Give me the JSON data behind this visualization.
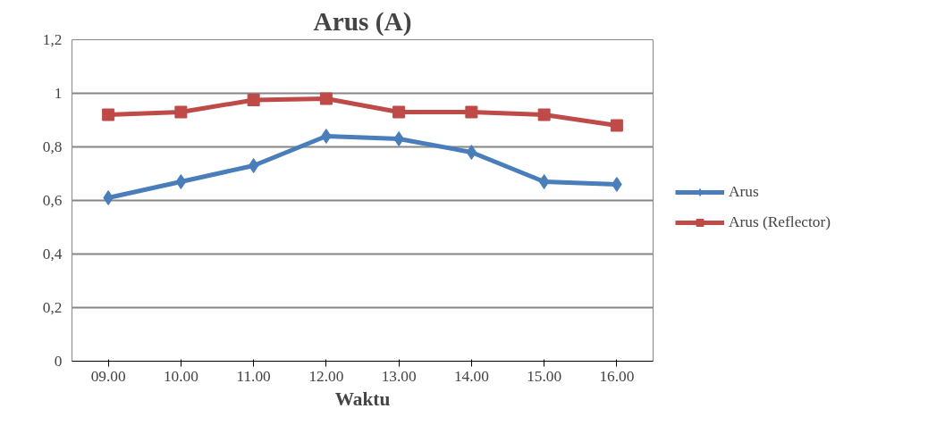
{
  "chart_data": {
    "type": "line",
    "title": "Arus (A)",
    "xlabel": "Waktu",
    "categories": [
      "09.00",
      "10.00",
      "11.00",
      "12.00",
      "13.00",
      "14.00",
      "15.00",
      "16.00"
    ],
    "series": [
      {
        "name": "Arus",
        "color": "#4a7ebb",
        "marker": "diamond",
        "values": [
          0.61,
          0.67,
          0.73,
          0.84,
          0.83,
          0.78,
          0.67,
          0.66
        ]
      },
      {
        "name": "Arus (Reflector)",
        "color": "#be4b48",
        "marker": "square",
        "values": [
          0.92,
          0.93,
          0.975,
          0.98,
          0.93,
          0.93,
          0.92,
          0.88
        ]
      }
    ],
    "ylim": [
      0,
      1.2
    ],
    "yticks": [
      0,
      {
        "value": 0.2,
        "label": "0,2"
      },
      {
        "value": 0.4,
        "label": "0,4"
      },
      {
        "value": 0.6,
        "label": "0,6"
      },
      {
        "value": 0.8,
        "label": "0,8"
      },
      1,
      {
        "value": 1.2,
        "label": "1,2"
      }
    ],
    "grid": "y",
    "legend": "right",
    "line_style": "solid"
  }
}
